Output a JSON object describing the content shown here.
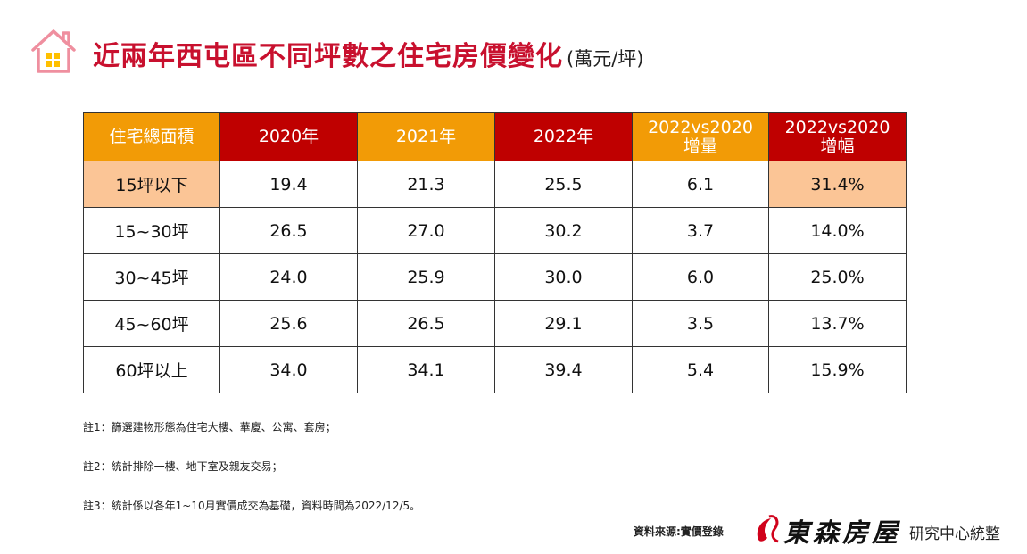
{
  "header": {
    "title": "近兩年西屯區不同坪數之住宅房價變化",
    "unit": "(萬元/坪)"
  },
  "table": {
    "headers": [
      {
        "line1": "住宅總面積",
        "line2": ""
      },
      {
        "line1": "2020年",
        "line2": ""
      },
      {
        "line1": "2021年",
        "line2": ""
      },
      {
        "line1": "2022年",
        "line2": ""
      },
      {
        "line1": "2022vs2020",
        "line2": "增量"
      },
      {
        "line1": "2022vs2020",
        "line2": "增幅"
      }
    ],
    "rows": [
      {
        "size": "15坪以下",
        "y2020": "19.4",
        "y2021": "21.3",
        "y2022": "25.5",
        "inc": "6.1",
        "pct": "31.4%"
      },
      {
        "size": "15~30坪",
        "y2020": "26.5",
        "y2021": "27.0",
        "y2022": "30.2",
        "inc": "3.7",
        "pct": "14.0%"
      },
      {
        "size": "30~45坪",
        "y2020": "24.0",
        "y2021": "25.9",
        "y2022": "30.0",
        "inc": "6.0",
        "pct": "25.0%"
      },
      {
        "size": "45~60坪",
        "y2020": "25.6",
        "y2021": "26.5",
        "y2022": "29.1",
        "inc": "3.5",
        "pct": "13.7%"
      },
      {
        "size": "60坪以上",
        "y2020": "34.0",
        "y2021": "34.1",
        "y2022": "39.4",
        "inc": "5.4",
        "pct": "15.9%"
      }
    ]
  },
  "notes": [
    "註1：篩選建物形態為住宅大樓、華廈、公寓、套房；",
    "註2：統計排除一樓、地下室及親友交易；",
    "註3：統計係以各年1~10月實價成交為基礎，資料時間為2022/12/5。"
  ],
  "footer": {
    "source": "資料來源:實價登錄",
    "brand": "東森房屋",
    "research": "研究中心統整"
  },
  "colors": {
    "title_red": "#c8102e",
    "header_orange": "#f29b06",
    "header_red": "#bf0000",
    "highlight": "#fbc596",
    "value_red": "#e8151b"
  },
  "icons": {
    "house": "house-icon",
    "logo": "brand-logo-icon"
  }
}
